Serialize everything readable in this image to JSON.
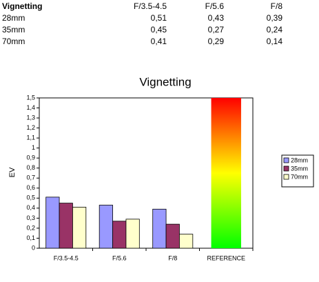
{
  "table": {
    "rows": [
      [
        "Vignetting",
        "F/3.5-4.5",
        "F/5.6",
        "F/8"
      ],
      [
        "28mm",
        "0,51",
        "0,43",
        "0,39"
      ],
      [
        "35mm",
        "0,45",
        "0,27",
        "0,24"
      ],
      [
        "70mm",
        "0,41",
        "0,29",
        "0,14"
      ]
    ]
  },
  "chart_data": {
    "type": "bar",
    "title": "Vignetting",
    "y_label": "EV",
    "categories": [
      "F/3.5-4.5",
      "F/5.6",
      "F/8",
      "REFERENCE"
    ],
    "series": [
      {
        "name": "28mm",
        "color": "#9999ff",
        "values": [
          0.51,
          0.43,
          0.39,
          null
        ]
      },
      {
        "name": "35mm",
        "color": "#993366",
        "values": [
          0.45,
          0.27,
          0.24,
          null
        ]
      },
      {
        "name": "70mm",
        "color": "#ffffcc",
        "values": [
          0.41,
          0.29,
          0.14,
          null
        ]
      }
    ],
    "reference_value": 1.5,
    "reference_colors": [
      "#00ff00",
      "#ffff00",
      "#ff0000"
    ],
    "ylim": [
      0,
      1.5
    ],
    "yticks": [
      0,
      {
        "value": 0.1,
        "label": "0,1"
      },
      {
        "value": 0.2,
        "label": "0,2"
      },
      {
        "value": 0.3,
        "label": "0,3"
      },
      {
        "value": 0.4,
        "label": "0,4"
      },
      {
        "value": 0.5,
        "label": "0,5"
      },
      {
        "value": 0.6,
        "label": "0,6"
      },
      {
        "value": 0.7,
        "label": "0,7"
      },
      {
        "value": 0.8,
        "label": "0,8"
      },
      {
        "value": 0.9,
        "label": "0,9"
      },
      1,
      {
        "value": 1.1,
        "label": "1,1"
      },
      {
        "value": 1.2,
        "label": "1,2"
      },
      {
        "value": 1.3,
        "label": "1,3"
      },
      {
        "value": 1.4,
        "label": "1,4"
      },
      {
        "value": 1.5,
        "label": "1,5"
      }
    ],
    "grid": false,
    "legend": "right"
  }
}
